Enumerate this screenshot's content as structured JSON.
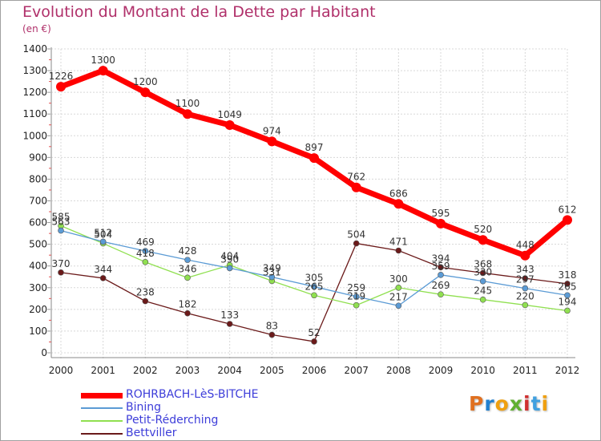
{
  "chart_data": {
    "type": "line",
    "title": "Evolution du Montant de la Dette par Habitant",
    "subtitle": "(en €)",
    "x": [
      "2000",
      "2001",
      "2002",
      "2003",
      "2004",
      "2005",
      "2006",
      "2007",
      "2008",
      "2009",
      "2010",
      "2011",
      "2012"
    ],
    "ylim": [
      0,
      1400
    ],
    "yticks": [
      0,
      100,
      200,
      300,
      400,
      500,
      600,
      700,
      800,
      900,
      1000,
      1100,
      1200,
      1300,
      1400
    ],
    "grid": true,
    "legend_position": "bottom-left",
    "series": [
      {
        "name": "ROHRBACH-LèS-BITCHE",
        "color": "#ff0000",
        "values": [
          1226,
          1300,
          1200,
          1100,
          1049,
          974,
          897,
          762,
          686,
          595,
          520,
          448,
          612
        ],
        "labels": [
          "1226",
          "1300",
          "1200",
          "1100",
          "1049",
          "974",
          "897",
          "762",
          "686",
          "595",
          "520",
          "448",
          "612"
        ]
      },
      {
        "name": "Bining",
        "color": "#5b9bd5",
        "values": [
          563,
          512,
          469,
          428,
          390,
          349,
          305,
          259,
          217,
          359,
          330,
          297,
          265
        ],
        "labels": [
          "563",
          "512",
          "469",
          "428",
          "390",
          "349",
          "305",
          "259",
          "217",
          "359",
          "330",
          "297",
          "265"
        ]
      },
      {
        "name": "Petit-Réderching",
        "color": "#90e050",
        "values": [
          585,
          504,
          418,
          346,
          404,
          331,
          265,
          219,
          300,
          269,
          245,
          220,
          194
        ],
        "labels": [
          "585",
          "504",
          "418",
          "346",
          "404",
          "331",
          "265",
          "219",
          "300",
          "269",
          "245",
          "220",
          "194"
        ]
      },
      {
        "name": "Bettviller",
        "color": "#6b1a1a",
        "values": [
          370,
          344,
          238,
          182,
          133,
          83,
          52,
          504,
          471,
          394,
          368,
          343,
          318
        ],
        "labels": [
          "370",
          "344",
          "238",
          "182",
          "133",
          "83",
          "52",
          "504",
          "471",
          "394",
          "368",
          "343",
          "318"
        ]
      }
    ]
  },
  "logo": {
    "text": "Proxiti",
    "colors": [
      "#e07020",
      "#2080d0",
      "#f0a010",
      "#60b030",
      "#d03030",
      "#40a0e0",
      "#f0a010"
    ]
  }
}
